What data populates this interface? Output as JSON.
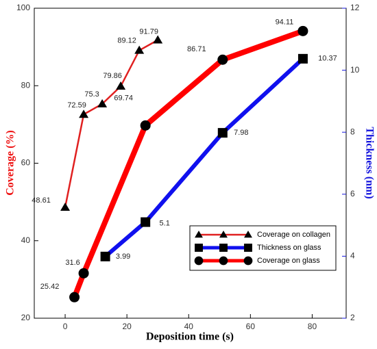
{
  "chart_data": {
    "type": "line",
    "xlabel": "Deposition time (s)",
    "ylabel": "Coverage (%)",
    "y2label": "Thickness (nm)",
    "xlim": [
      -10,
      91
    ],
    "xticks": [
      0,
      20,
      40,
      60,
      80
    ],
    "ylim": [
      20,
      100
    ],
    "yticks": [
      20,
      40,
      60,
      80,
      100
    ],
    "y2lim": [
      2,
      12
    ],
    "y2ticks": [
      2,
      4,
      6,
      8,
      10,
      12
    ],
    "ylabel_color": "#ee1111",
    "y2label_color": "#1111dd",
    "legend": "lower right",
    "series": [
      {
        "name": "Coverage on collagen",
        "color": "#e02020",
        "marker": "triangle",
        "x": [
          0,
          6,
          12,
          18,
          24,
          30
        ],
        "values": [
          48.61,
          72.59,
          75.3,
          79.86,
          89.12,
          91.79
        ]
      },
      {
        "name": "Thickness on glass",
        "color": "#1010ee",
        "marker": "square",
        "axis": "y2",
        "x": [
          13,
          26,
          51,
          77
        ],
        "values": [
          3.99,
          5.1,
          7.98,
          10.37
        ]
      },
      {
        "name": "Coverage on glass",
        "color": "#ff0000",
        "marker": "circle",
        "x": [
          3,
          6,
          26,
          51,
          77
        ],
        "values": [
          25.42,
          31.6,
          69.74,
          86.71,
          94.11
        ]
      }
    ]
  }
}
